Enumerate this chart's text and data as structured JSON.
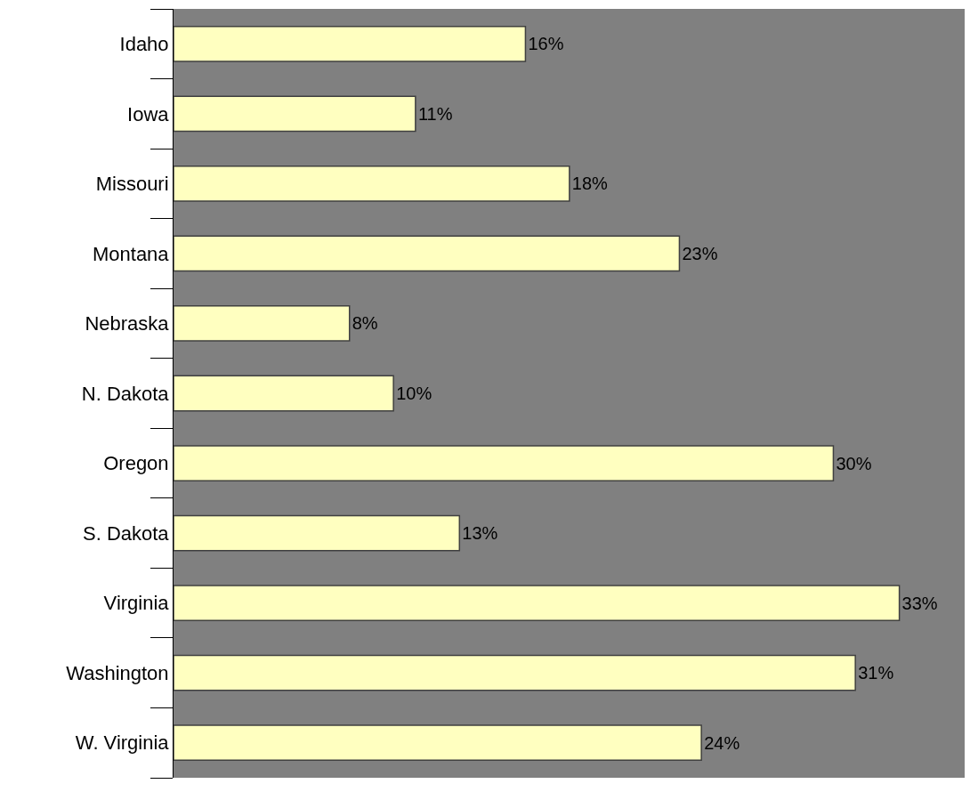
{
  "chart_data": {
    "type": "bar",
    "orientation": "horizontal",
    "categories": [
      "Idaho",
      "Iowa",
      "Missouri",
      "Montana",
      "Nebraska",
      "N. Dakota",
      "Oregon",
      "S. Dakota",
      "Virginia",
      "Washington",
      "W. Virginia"
    ],
    "values": [
      16,
      11,
      18,
      23,
      8,
      10,
      30,
      13,
      33,
      31,
      24
    ],
    "value_labels": [
      "16%",
      "11%",
      "18%",
      "23%",
      "8%",
      "10%",
      "30%",
      "13%",
      "33%",
      "31%",
      "24%"
    ],
    "color": "#ffffc0"
  }
}
